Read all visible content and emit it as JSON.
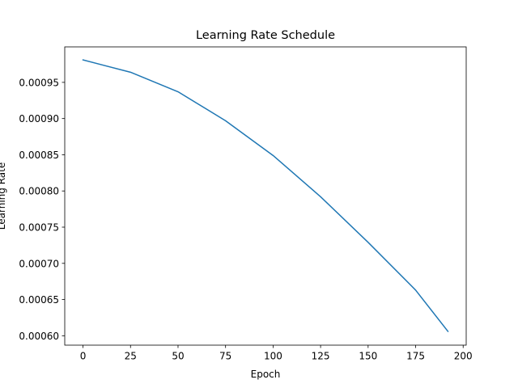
{
  "chart_data": {
    "type": "line",
    "title": "Learning Rate Schedule",
    "xlabel": "Epoch",
    "ylabel": "Learning Rate",
    "xlim": [
      -9.6,
      201.6
    ],
    "ylim": [
      0.000587,
      0.000999
    ],
    "xticks": [
      0,
      25,
      50,
      75,
      100,
      125,
      150,
      175,
      200
    ],
    "xtick_labels": [
      "0",
      "25",
      "50",
      "75",
      "100",
      "125",
      "150",
      "175",
      "200"
    ],
    "yticks": [
      0.0006,
      0.00065,
      0.0007,
      0.00075,
      0.0008,
      0.00085,
      0.0009,
      0.00095
    ],
    "ytick_labels": [
      "0.00060",
      "0.00065",
      "0.00070",
      "0.00075",
      "0.00080",
      "0.00085",
      "0.00090",
      "0.00095"
    ],
    "grid": false,
    "legend": false,
    "series": [
      {
        "color": "#1f77b4",
        "x": [
          0,
          25,
          50,
          75,
          100,
          125,
          150,
          175,
          192
        ],
        "y": [
          0.000981,
          0.000964,
          0.000937,
          0.000897,
          0.000849,
          0.000792,
          0.000729,
          0.000663,
          0.000606
        ]
      }
    ]
  }
}
